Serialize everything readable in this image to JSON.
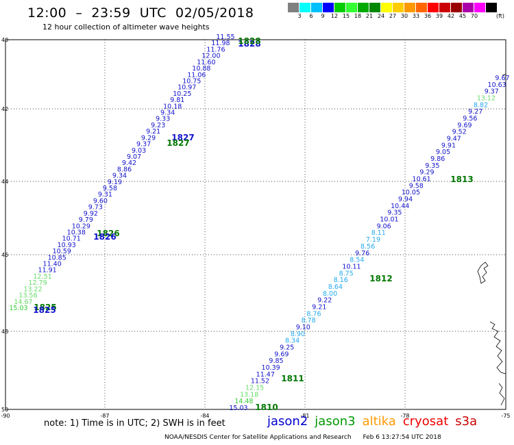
{
  "header": {
    "title": "12:00  –  23:59  UTC  02/05/2018",
    "subtitle": "12 hour collection of altimeter wave heights"
  },
  "scale": {
    "colors": [
      "#808080",
      "#00ffff",
      "#00bfff",
      "#0000ff",
      "#00cc00",
      "#33ff33",
      "#00aa00",
      "#008800",
      "#ffff00",
      "#ffcc00",
      "#ff9900",
      "#ff6600",
      "#ff0000",
      "#cc0000",
      "#990000",
      "#aa00aa",
      "#ff00ff",
      "#000000"
    ],
    "labels": [
      "3",
      "6",
      "9",
      "12",
      "15",
      "18",
      "21",
      "24",
      "27",
      "30",
      "33",
      "36",
      "39",
      "42",
      "45",
      "70"
    ],
    "unit": "(ft)"
  },
  "map": {
    "lon_labels": [
      "-90",
      "-87",
      "-84",
      "-81",
      "-78",
      "-75"
    ],
    "lat_labels": [
      "40",
      "42",
      "44",
      "46",
      "48",
      "50"
    ]
  },
  "tracks": [
    {
      "name": "west",
      "values": [
        [
          "15.03",
          "#33cc33"
        ],
        [
          "14.67",
          "#66dd66"
        ],
        [
          "13.56",
          "#66dd66"
        ],
        [
          "13.22",
          "#66dd66"
        ],
        [
          "12.79",
          "#66dd66"
        ],
        [
          "12.51",
          "#66dd66"
        ],
        [
          "11.91",
          "#1010cc"
        ],
        [
          "11.40",
          "#1010cc"
        ],
        [
          "10.85",
          "#1010cc"
        ],
        [
          "10.59",
          "#1010cc"
        ],
        [
          "10.93",
          "#1010cc"
        ],
        [
          "10.71",
          "#1010cc"
        ],
        [
          "10.38",
          "#1010cc"
        ],
        [
          "10.29",
          "#1010cc"
        ],
        [
          "9.79",
          "#1010cc"
        ],
        [
          "9.92",
          "#1010cc"
        ],
        [
          "9.73",
          "#1010cc"
        ],
        [
          "9.60",
          "#1010cc"
        ],
        [
          "9.31",
          "#1010cc"
        ],
        [
          "9.58",
          "#1010cc"
        ],
        [
          "9.19",
          "#1010cc"
        ],
        [
          "9.34",
          "#1010cc"
        ],
        [
          "8.86",
          "#1010cc"
        ],
        [
          "9.42",
          "#1010cc"
        ],
        [
          "9.07",
          "#1010cc"
        ],
        [
          "9.03",
          "#1010cc"
        ],
        [
          "9.37",
          "#1010cc"
        ],
        [
          "9.29",
          "#1010cc"
        ],
        [
          "9.21",
          "#1010cc"
        ],
        [
          "9.23",
          "#1010cc"
        ],
        [
          "9.33",
          "#1010cc"
        ],
        [
          "9.34",
          "#1010cc"
        ],
        [
          "10.18",
          "#1010cc"
        ],
        [
          "9.81",
          "#1010cc"
        ],
        [
          "10.25",
          "#1010cc"
        ],
        [
          "10.97",
          "#1010cc"
        ],
        [
          "10.75",
          "#1010cc"
        ],
        [
          "11.06",
          "#1010cc"
        ],
        [
          "10.88",
          "#1010cc"
        ],
        [
          "11.60",
          "#1010cc"
        ],
        [
          "12.00",
          "#1010cc"
        ],
        [
          "11.76",
          "#1010cc"
        ],
        [
          "11.98",
          "#1010cc"
        ],
        [
          "11.55",
          "#1010cc"
        ]
      ]
    },
    {
      "name": "east",
      "values": [
        [
          "15.03",
          "#1010cc"
        ],
        [
          "14.48",
          "#33cc33"
        ],
        [
          "13.18",
          "#66dd66"
        ],
        [
          "12.15",
          "#66dd66"
        ],
        [
          "11.52",
          "#1010cc"
        ],
        [
          "11.47",
          "#1010cc"
        ],
        [
          "10.39",
          "#1010cc"
        ],
        [
          "9.85",
          "#1010cc"
        ],
        [
          "9.69",
          "#1010cc"
        ],
        [
          "9.25",
          "#1010cc"
        ],
        [
          "8.34",
          "#22aaee"
        ],
        [
          "8.90",
          "#22aaee"
        ],
        [
          "9.10",
          "#1010cc"
        ],
        [
          "8.78",
          "#22aaee"
        ],
        [
          "8.76",
          "#22aaee"
        ],
        [
          "9.21",
          "#1010cc"
        ],
        [
          "9.22",
          "#1010cc"
        ],
        [
          "8.00",
          "#22aaee"
        ],
        [
          "8.64",
          "#22aaee"
        ],
        [
          "8.16",
          "#22aaee"
        ],
        [
          "8.75",
          "#22aaee"
        ],
        [
          "10.11",
          "#1010cc"
        ],
        [
          "8.54",
          "#22aaee"
        ],
        [
          "9.76",
          "#1010cc"
        ],
        [
          "8.56",
          "#22aaee"
        ],
        [
          "7.19",
          "#22aaee"
        ],
        [
          "8.11",
          "#22aaee"
        ],
        [
          "9.06",
          "#1010cc"
        ],
        [
          "10.01",
          "#1010cc"
        ],
        [
          "9.35",
          "#1010cc"
        ],
        [
          "10.44",
          "#1010cc"
        ],
        [
          "9.94",
          "#1010cc"
        ],
        [
          "10.05",
          "#1010cc"
        ],
        [
          "9.58",
          "#1010cc"
        ],
        [
          "10.61",
          "#1010cc"
        ],
        [
          "9.29",
          "#1010cc"
        ],
        [
          "9.35",
          "#1010cc"
        ],
        [
          "9.86",
          "#1010cc"
        ],
        [
          "9.05",
          "#1010cc"
        ],
        [
          "9.91",
          "#1010cc"
        ],
        [
          "9.47",
          "#1010cc"
        ],
        [
          "9.52",
          "#1010cc"
        ],
        [
          "9.69",
          "#1010cc"
        ],
        [
          "9.56",
          "#1010cc"
        ],
        [
          "9.27",
          "#1010cc"
        ],
        [
          "8.82",
          "#22aaee"
        ],
        [
          "13.12",
          "#66dd66"
        ],
        [
          "9.37",
          "#1010cc"
        ],
        [
          "10.63",
          "#1010cc"
        ],
        [
          "9.67",
          "#1010cc"
        ]
      ]
    }
  ],
  "times": [
    {
      "label": "1828",
      "color": "#1010cc",
      "where": "west-top-a"
    },
    {
      "label": "1828",
      "color": "#007700",
      "where": "west-top-b"
    },
    {
      "label": "1827",
      "color": "#1010cc",
      "where": "west-mid-a"
    },
    {
      "label": "1827",
      "color": "#007700",
      "where": "west-mid-b"
    },
    {
      "label": "1826",
      "color": "#007700",
      "where": "west-low-a"
    },
    {
      "label": "1826",
      "color": "#1010cc",
      "where": "west-low-b"
    },
    {
      "label": "1825",
      "color": "#007700",
      "where": "west-bot-a"
    },
    {
      "label": "1825",
      "color": "#1010cc",
      "where": "west-bot-b"
    },
    {
      "label": "1813",
      "color": "#007700",
      "where": "east-1813"
    },
    {
      "label": "1812",
      "color": "#007700",
      "where": "east-1812"
    },
    {
      "label": "1811",
      "color": "#007700",
      "where": "east-1811"
    },
    {
      "label": "1810",
      "color": "#007700",
      "where": "east-1810"
    }
  ],
  "note": "note:  1) Time is in UTC;  2) SWH is in feet",
  "legend": [
    {
      "label": "jason2",
      "color": "#0000cc"
    },
    {
      "label": "jason3",
      "color": "#009900"
    },
    {
      "label": "altika",
      "color": "#ff9900"
    },
    {
      "label": "cryosat",
      "color": "#ee0000"
    },
    {
      "label": "s3a",
      "color": "#cc0000"
    }
  ],
  "footer": {
    "credit": "NOAA/NESDIS Center for Satellite Applications and Research",
    "timestamp": "Feb  6 13:27:54 UTC 2018"
  }
}
